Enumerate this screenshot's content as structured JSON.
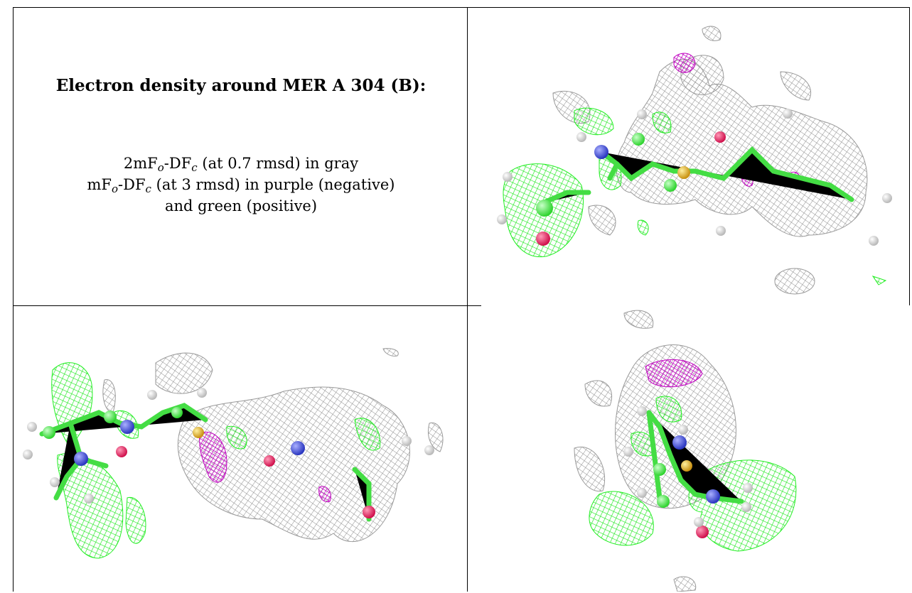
{
  "caption": {
    "title": "Electron density around MER A 304 (B):",
    "line1": {
      "a": "2mF",
      "o": "o",
      "b": "-DF",
      "c": "c",
      "rest": " (at 0.7 rmsd) in gray"
    },
    "line2": {
      "a": "mF",
      "o": "o",
      "b": "-DF",
      "c": "c",
      "rest": " (at 3 rmsd) in purple (negative)"
    },
    "line3": "and green (positive)"
  },
  "colors": {
    "gray_mesh": "#9a9a9a",
    "positive_mesh": "#22ee22",
    "negative_mesh": "#cc00cc",
    "carbon": "#4ee84e",
    "nitrogen": "#3a48d8",
    "oxygen": "#e8185a",
    "sulfur": "#e0b020",
    "hydrogen": "#e8e8e8"
  },
  "panels": [
    {
      "view": "top-right-view"
    },
    {
      "view": "bottom-left-view"
    },
    {
      "view": "bottom-right-view"
    }
  ]
}
